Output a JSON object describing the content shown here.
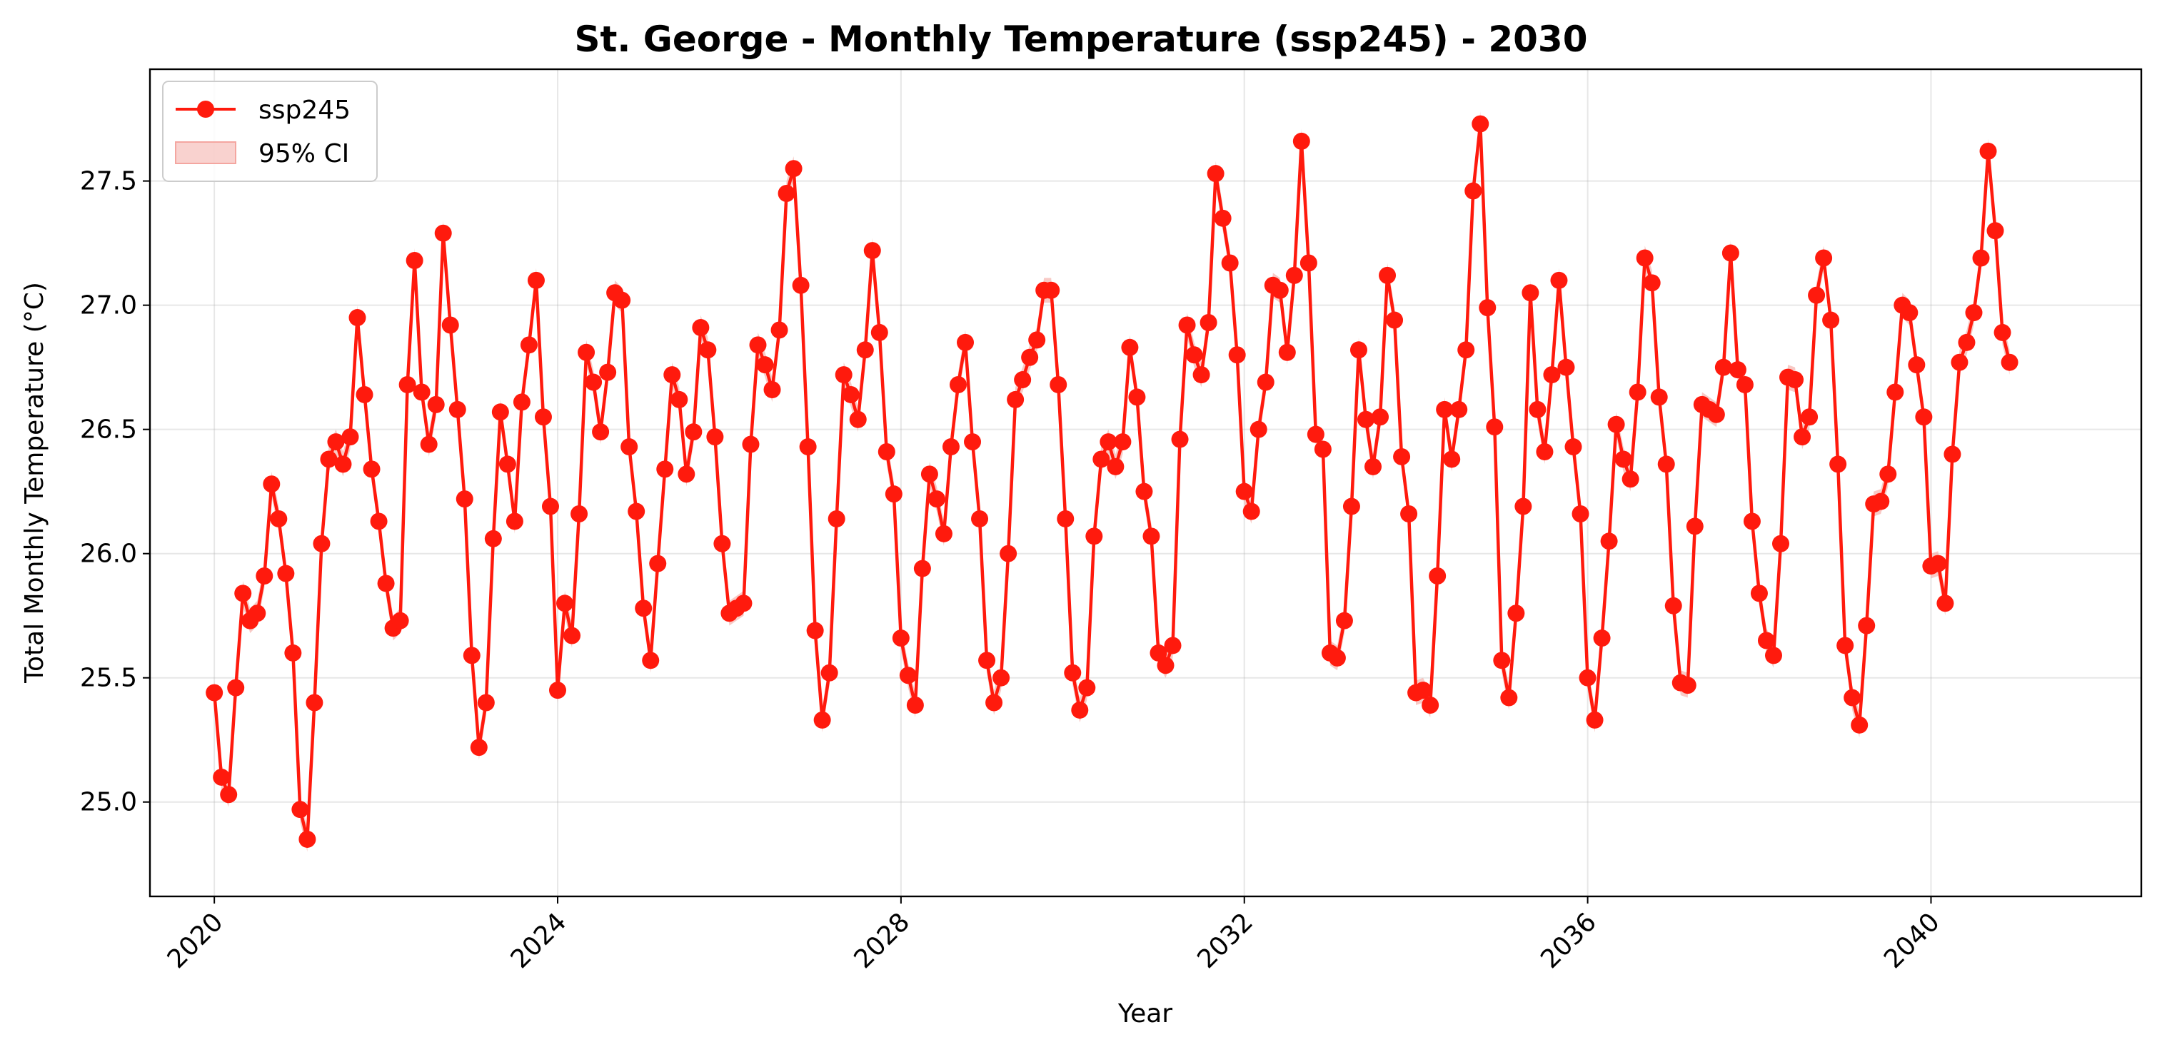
{
  "chart_data": {
    "type": "line",
    "title": "St. George - Monthly Temperature (ssp245) - 2030",
    "xlabel": "Year",
    "ylabel": "Total Monthly Temperature (°C)",
    "xlim": [
      2019.25,
      2042.45
    ],
    "ylim": [
      24.62,
      27.95
    ],
    "x_ticks": [
      2020,
      2024,
      2028,
      2032,
      2036,
      2040
    ],
    "x_tick_labels": [
      "2020",
      "2024",
      "2028",
      "2032",
      "2036",
      "2040"
    ],
    "y_ticks": [
      25.0,
      25.5,
      26.0,
      26.5,
      27.0,
      27.5
    ],
    "y_tick_labels": [
      "25.0",
      "25.5",
      "26.0",
      "26.5",
      "27.0",
      "27.5"
    ],
    "grid": true,
    "legend_position": "top-left",
    "colors": {
      "line": "#ff1a0d",
      "ci_fill": "#f4a6a0"
    },
    "ci_halfwidth": 0.05,
    "x_start": 2020.0,
    "x_step": 0.08333,
    "series": [
      {
        "name": "ssp245",
        "ci_label": "95% CI",
        "values": [
          25.44,
          25.1,
          25.03,
          25.46,
          25.84,
          25.73,
          25.76,
          25.91,
          26.28,
          26.14,
          25.92,
          25.6,
          24.97,
          24.85,
          25.4,
          26.04,
          26.38,
          26.45,
          26.36,
          26.47,
          26.95,
          26.64,
          26.34,
          26.13,
          25.88,
          25.7,
          25.73,
          26.68,
          27.18,
          26.65,
          26.44,
          26.6,
          27.29,
          26.92,
          26.58,
          26.22,
          25.59,
          25.22,
          25.4,
          26.06,
          26.57,
          26.36,
          26.13,
          26.61,
          26.84,
          27.1,
          26.55,
          26.19,
          25.45,
          25.8,
          25.67,
          26.16,
          26.81,
          26.69,
          26.49,
          26.73,
          27.05,
          27.02,
          26.43,
          26.17,
          25.78,
          25.57,
          25.96,
          26.34,
          26.72,
          26.62,
          26.32,
          26.49,
          26.91,
          26.82,
          26.47,
          26.04,
          25.76,
          25.78,
          25.8,
          26.44,
          26.84,
          26.76,
          26.66,
          26.9,
          27.45,
          27.55,
          27.08,
          26.43,
          25.69,
          25.33,
          25.52,
          26.14,
          26.72,
          26.64,
          26.54,
          26.82,
          27.22,
          26.89,
          26.41,
          26.24,
          25.66,
          25.51,
          25.39,
          25.94,
          26.32,
          26.22,
          26.08,
          26.43,
          26.68,
          26.85,
          26.45,
          26.14,
          25.57,
          25.4,
          25.5,
          26.0,
          26.62,
          26.7,
          26.79,
          26.86,
          27.06,
          27.06,
          26.68,
          26.14,
          25.52,
          25.37,
          25.46,
          26.07,
          26.38,
          26.45,
          26.35,
          26.45,
          26.83,
          26.63,
          26.25,
          26.07,
          25.6,
          25.55,
          25.63,
          26.46,
          26.92,
          26.8,
          26.72,
          26.93,
          27.53,
          27.35,
          27.17,
          26.8,
          26.25,
          26.17,
          26.5,
          26.69,
          27.08,
          27.06,
          26.81,
          27.12,
          27.66,
          27.17,
          26.48,
          26.42,
          25.6,
          25.58,
          25.73,
          26.19,
          26.82,
          26.54,
          26.35,
          26.55,
          27.12,
          26.94,
          26.39,
          26.16,
          25.44,
          25.45,
          25.39,
          25.91,
          26.58,
          26.38,
          26.58,
          26.82,
          27.46,
          27.73,
          26.99,
          26.51,
          25.57,
          25.42,
          25.76,
          26.19,
          27.05,
          26.58,
          26.41,
          26.72,
          27.1,
          26.75,
          26.43,
          26.16,
          25.5,
          25.33,
          25.66,
          26.05,
          26.52,
          26.38,
          26.3,
          26.65,
          27.19,
          27.09,
          26.63,
          26.36,
          25.79,
          25.48,
          25.47,
          26.11,
          26.6,
          26.58,
          26.56,
          26.75,
          27.21,
          26.74,
          26.68,
          26.13,
          25.84,
          25.65,
          25.59,
          26.04,
          26.71,
          26.7,
          26.47,
          26.55,
          27.04,
          27.19,
          26.94,
          26.36,
          25.63,
          25.42,
          25.31,
          25.71,
          26.2,
          26.21,
          26.32,
          26.65,
          27.0,
          26.97,
          26.76,
          26.55,
          25.95,
          25.96,
          25.8,
          26.4,
          26.77,
          26.85,
          26.97,
          27.19,
          27.62,
          27.3,
          26.89,
          26.77
        ]
      }
    ]
  }
}
